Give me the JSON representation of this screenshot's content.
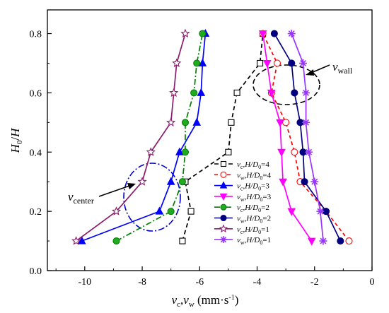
{
  "chart_data": {
    "type": "line",
    "xlabel": "v_c,v_w (mm·s⁻¹)",
    "ylabel": "H₀/H",
    "xlim": [
      -11.3,
      0
    ],
    "ylim": [
      0,
      0.88
    ],
    "xticks": [
      -10,
      -8,
      -6,
      -4,
      -2,
      0
    ],
    "yticks": [
      0.0,
      0.2,
      0.4,
      0.6,
      0.8
    ],
    "xtick_labels": [
      "-10",
      "-8",
      "-6",
      "-4",
      "-2",
      "0"
    ],
    "ytick_labels": [
      "0.0",
      "0.2",
      "0.4",
      "0.6",
      "0.8"
    ],
    "legend_position": "lower-right",
    "grid": false,
    "series": [
      {
        "label_var": "v",
        "label_sub": "c",
        "label_rest": ",H/D",
        "label_sub2": "0",
        "label_tail": "=4",
        "color": "#000000",
        "dash": "6,4",
        "marker": "square",
        "fill": "none",
        "x": [
          -6.6,
          -6.3,
          -6.5,
          -5.0,
          -4.9,
          -4.7,
          -3.9,
          -3.8
        ],
        "y": [
          0.1,
          0.2,
          0.3,
          0.4,
          0.5,
          0.6,
          0.7,
          0.8
        ]
      },
      {
        "label_var": "v",
        "label_sub": "w",
        "label_rest": ",H/D",
        "label_sub2": "0",
        "label_tail": "=4",
        "color": "#ff0000",
        "dash": "5,4",
        "marker": "circle",
        "fill": "none",
        "x": [
          -0.8,
          -1.6,
          -2.5,
          -2.7,
          -3.0,
          -3.5,
          -3.3,
          -3.8
        ],
        "y": [
          0.1,
          0.2,
          0.3,
          0.4,
          0.5,
          0.6,
          0.7,
          0.8
        ]
      },
      {
        "label_var": "v",
        "label_sub": "c",
        "label_rest": ",H/D",
        "label_sub2": "0",
        "label_tail": "=3",
        "color": "#0000ff",
        "dash": "",
        "marker": "triangle-up",
        "fill": "#0000ff",
        "x": [
          -10.1,
          -7.4,
          -7.0,
          -6.7,
          -6.1,
          -5.95,
          -5.9,
          -5.8
        ],
        "y": [
          0.1,
          0.2,
          0.3,
          0.4,
          0.5,
          0.6,
          0.7,
          0.8
        ]
      },
      {
        "label_var": "v",
        "label_sub": "w",
        "label_rest": ",H/D",
        "label_sub2": "0",
        "label_tail": "=3",
        "color": "#ff00ff",
        "dash": "",
        "marker": "triangle-down",
        "fill": "#ff00ff",
        "x": [
          -2.1,
          -2.8,
          -3.1,
          -3.15,
          -3.2,
          -3.5,
          -3.65,
          -3.8
        ],
        "y": [
          0.1,
          0.2,
          0.3,
          0.4,
          0.5,
          0.6,
          0.7,
          0.8
        ]
      },
      {
        "label_var": "v",
        "label_sub": "c",
        "label_rest": ",H/D",
        "label_sub2": "0",
        "label_tail": "=2",
        "color": "#008000",
        "dash": "8,3,2,3",
        "marker": "circle",
        "fill": "#22aa22",
        "x": [
          -8.9,
          -7.0,
          -6.6,
          -6.5,
          -6.5,
          -6.2,
          -6.1,
          -5.9
        ],
        "y": [
          0.1,
          0.2,
          0.3,
          0.4,
          0.5,
          0.6,
          0.7,
          0.8
        ]
      },
      {
        "label_var": "v",
        "label_sub": "w",
        "label_rest": ",H/D",
        "label_sub2": "0",
        "label_tail": "=2",
        "color": "#000080",
        "dash": "",
        "marker": "circle",
        "fill": "#000080",
        "x": [
          -1.1,
          -1.6,
          -2.35,
          -2.4,
          -2.5,
          -2.7,
          -2.8,
          -3.4
        ],
        "y": [
          0.1,
          0.2,
          0.3,
          0.4,
          0.5,
          0.6,
          0.7,
          0.8
        ]
      },
      {
        "label_var": "v",
        "label_sub": "c",
        "label_rest": ",H/D",
        "label_sub2": "0",
        "label_tail": "=1",
        "color": "#8b1a6b",
        "dash": "",
        "marker": "star",
        "fill": "none",
        "x": [
          -10.3,
          -8.9,
          -8.0,
          -7.7,
          -7.0,
          -6.9,
          -6.8,
          -6.5
        ],
        "y": [
          0.1,
          0.2,
          0.3,
          0.4,
          0.5,
          0.6,
          0.7,
          0.8
        ]
      },
      {
        "label_var": "v",
        "label_sub": "w",
        "label_rest": ",H/D",
        "label_sub2": "0",
        "label_tail": "=1",
        "color": "#9933ff",
        "dash": "",
        "marker": "asterisk",
        "fill": "none",
        "x": [
          -1.7,
          -1.8,
          -2.0,
          -2.2,
          -2.3,
          -2.3,
          -2.4,
          -2.8
        ],
        "y": [
          0.1,
          0.2,
          0.3,
          0.4,
          0.5,
          0.6,
          0.7,
          0.8
        ]
      }
    ],
    "annotations": [
      {
        "var": "v",
        "sub": "wall"
      },
      {
        "var": "v",
        "sub": "center"
      }
    ]
  }
}
